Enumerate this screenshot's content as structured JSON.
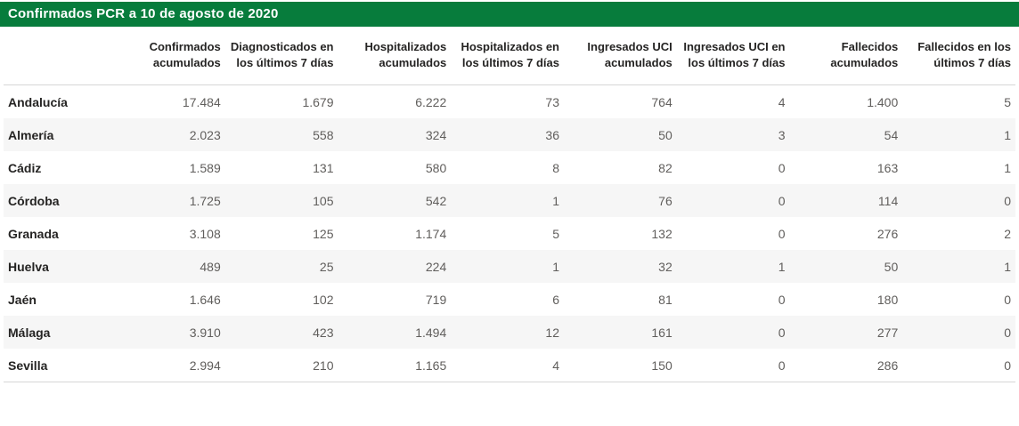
{
  "title_bar": {
    "title": "Confirmados PCR a 10 de agosto de 2020"
  },
  "colors": {
    "accent_green": "#077c3c",
    "title_text": "#ffffff",
    "header_text": "#252423",
    "value_text": "#605e5c",
    "stripe_bg": "#f6f6f6",
    "border": "#d6d6d6"
  },
  "chart_data": {
    "type": "table",
    "title": "Confirmados PCR a 10 de agosto de 2020",
    "columns": [
      "Confirmados acumulados",
      "Diagnosticados en los últimos 7 días",
      "Hospitalizados acumulados",
      "Hospitalizados en los últimos 7 días",
      "Ingresados UCI acumulados",
      "Ingresados UCI en los últimos 7 días",
      "Fallecidos acumulados",
      "Fallecidos en los últimos 7 días"
    ],
    "rows": [
      {
        "region": "Andalucía",
        "values": [
          "17.484",
          "1.679",
          "6.222",
          "73",
          "764",
          "4",
          "1.400",
          "5"
        ]
      },
      {
        "region": "Almería",
        "values": [
          "2.023",
          "558",
          "324",
          "36",
          "50",
          "3",
          "54",
          "1"
        ]
      },
      {
        "region": "Cádiz",
        "values": [
          "1.589",
          "131",
          "580",
          "8",
          "82",
          "0",
          "163",
          "1"
        ]
      },
      {
        "region": "Córdoba",
        "values": [
          "1.725",
          "105",
          "542",
          "1",
          "76",
          "0",
          "114",
          "0"
        ]
      },
      {
        "region": "Granada",
        "values": [
          "3.108",
          "125",
          "1.174",
          "5",
          "132",
          "0",
          "276",
          "2"
        ]
      },
      {
        "region": "Huelva",
        "values": [
          "489",
          "25",
          "224",
          "1",
          "32",
          "1",
          "50",
          "1"
        ]
      },
      {
        "region": "Jaén",
        "values": [
          "1.646",
          "102",
          "719",
          "6",
          "81",
          "0",
          "180",
          "0"
        ]
      },
      {
        "region": "Málaga",
        "values": [
          "3.910",
          "423",
          "1.494",
          "12",
          "161",
          "0",
          "277",
          "0"
        ]
      },
      {
        "region": "Sevilla",
        "values": [
          "2.994",
          "210",
          "1.165",
          "4",
          "150",
          "0",
          "286",
          "0"
        ]
      }
    ]
  }
}
